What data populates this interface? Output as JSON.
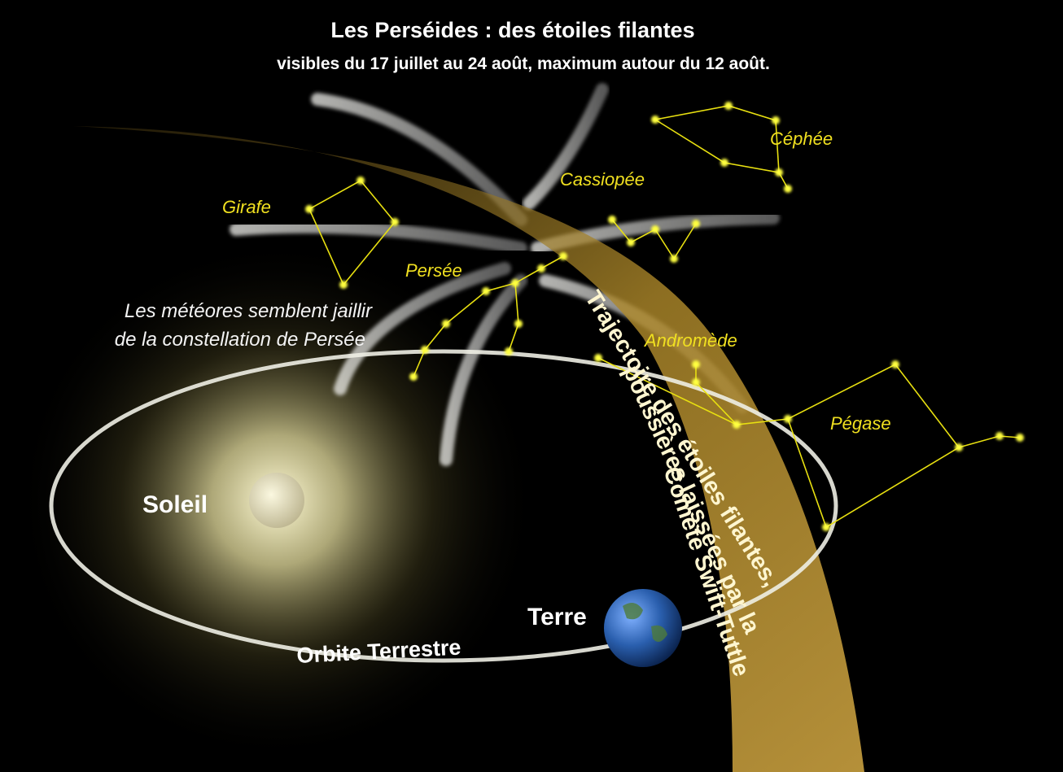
{
  "header": {
    "title": "Les Perséides : des étoiles filantes",
    "subtitle": "visibles du 17 juillet au 24 août, maximum autour du 12 août."
  },
  "constellations": [
    "Céphée",
    "Cassiopée",
    "Girafe",
    "Persée",
    "Andromède",
    "Pégase"
  ],
  "annotation": [
    "Les météores semblent jaillir",
    "de la constellation de Persée"
  ],
  "labels": {
    "sun": "Soleil",
    "earth": "Terre",
    "orbit": "Orbite Terrestre"
  },
  "trajectory": [
    "Trajectoire des étoiles filantes,",
    "poussières laissées par la",
    "Comète Swift-Tuttle"
  ]
}
